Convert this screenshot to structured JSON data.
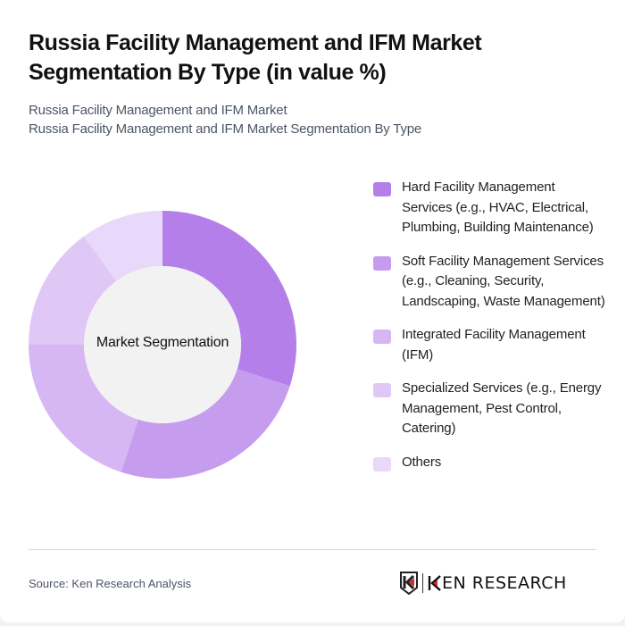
{
  "header": {
    "title": "Russia Facility Management and IFM Market Segmentation By Type (in value %)",
    "subtitle_line1": "Russia Facility Management and IFM Market",
    "subtitle_line2": "Russia Facility Management and IFM Market Segmentation By Type"
  },
  "chart_data": {
    "type": "pie",
    "variant": "donut",
    "title": "Russia Facility Management and IFM Market Segmentation By Type (in value %)",
    "center_label": "Market Segmentation",
    "categories": [
      "Hard Facility Management Services (e.g., HVAC, Electrical, Plumbing, Building Maintenance)",
      "Soft Facility Management Services (e.g., Cleaning, Security, Landscaping, Waste Management)",
      "Integrated Facility Management (IFM)",
      "Specialized Services (e.g., Energy Management, Pest Control, Catering)",
      "Others"
    ],
    "values": [
      30,
      25,
      20,
      15,
      10
    ],
    "colors": [
      "#B57FEA",
      "#C69CEE",
      "#D6B7F4",
      "#E0C8F6",
      "#E8D8F9"
    ],
    "legend_position": "right",
    "start_angle": "12 o'clock, clockwise"
  },
  "legend": {
    "items": [
      {
        "label": "Hard Facility Management Services (e.g., HVAC, Electrical, Plumbing, Building Maintenance)",
        "color": "#B57FEA"
      },
      {
        "label": "Soft Facility Management Services (e.g., Cleaning, Security, Landscaping, Waste Management)",
        "color": "#C69CEE"
      },
      {
        "label": "Integrated Facility Management (IFM)",
        "color": "#D6B7F4"
      },
      {
        "label": "Specialized Services (e.g., Energy Management, Pest Control, Catering)",
        "color": "#E0C8F6"
      },
      {
        "label": "Others",
        "color": "#E8D8F9"
      }
    ]
  },
  "footer": {
    "source": "Source: Ken Research Analysis",
    "logo_text": "KEN RESEARCH"
  }
}
